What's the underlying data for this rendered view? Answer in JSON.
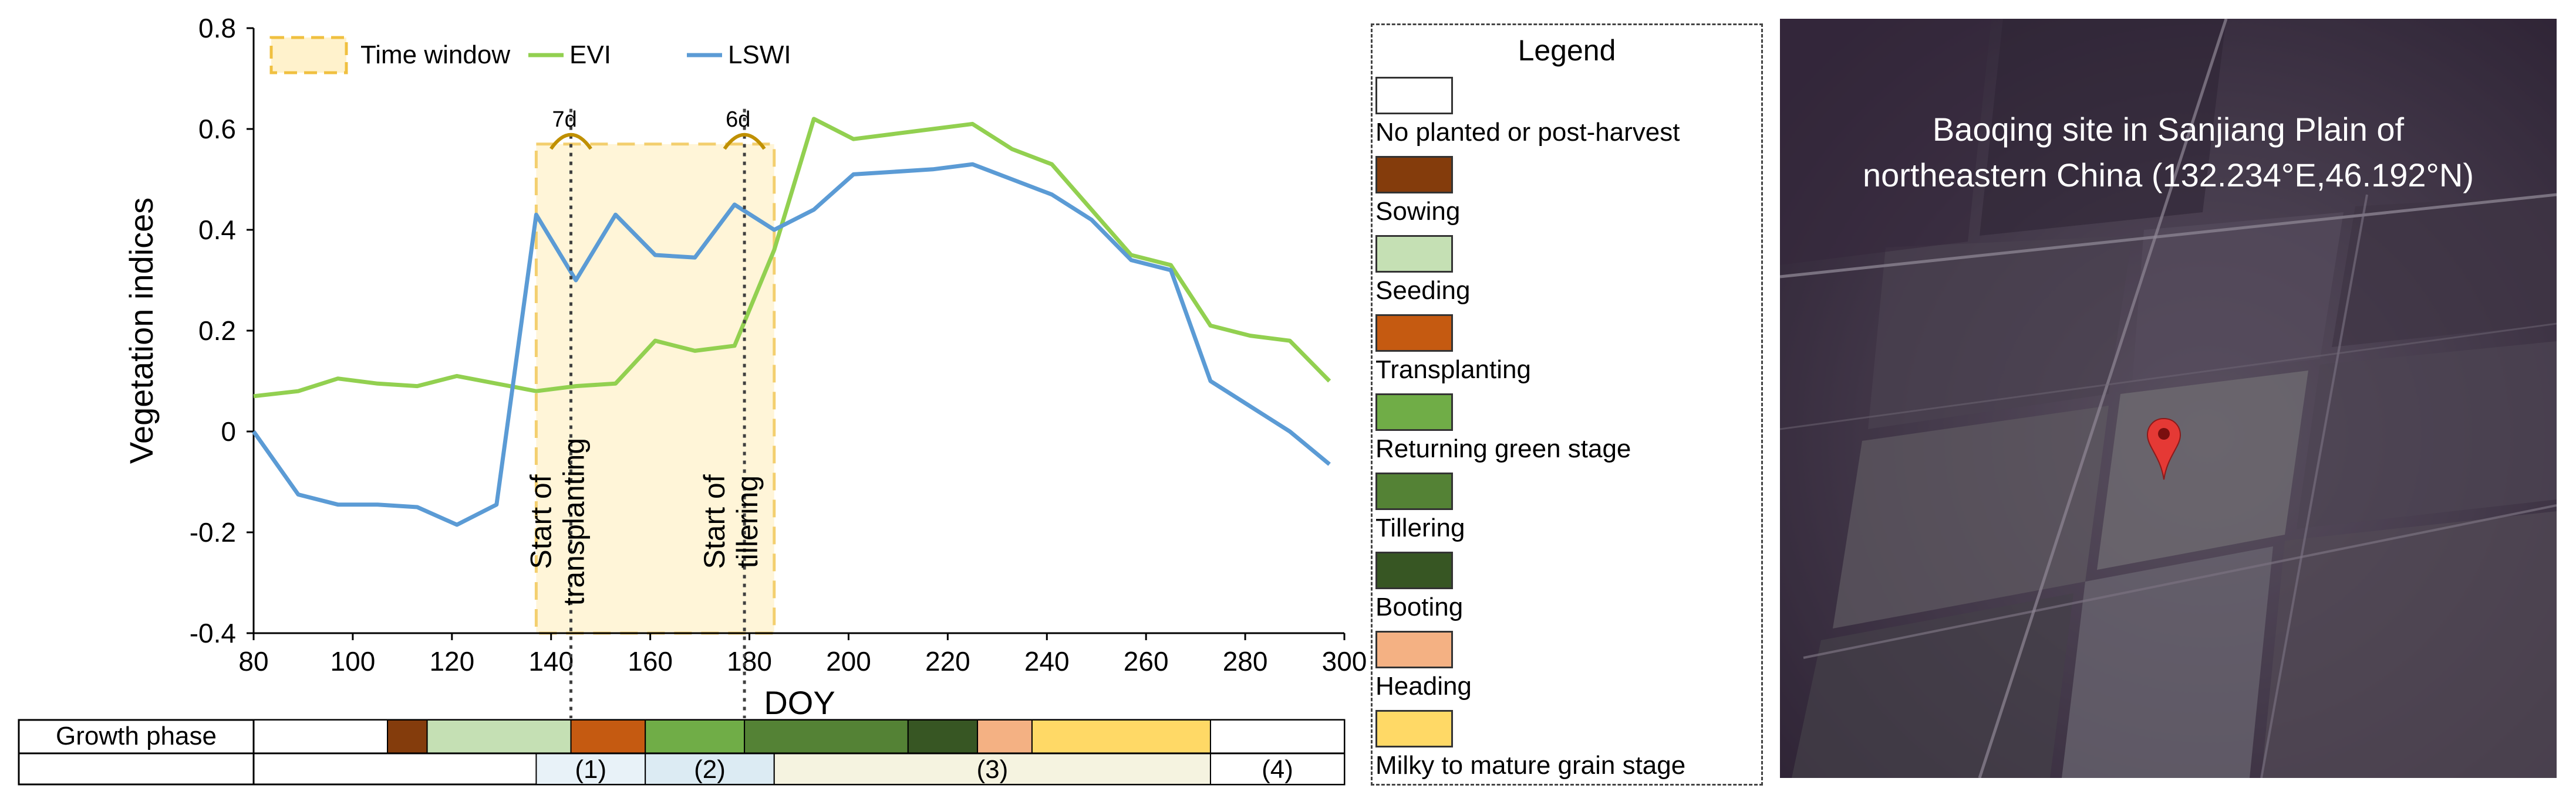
{
  "chart_data": {
    "type": "line",
    "xlabel": "DOY",
    "ylabel": "Vegetation indices",
    "xlim": [
      80,
      300
    ],
    "ylim": [
      -0.4,
      0.8
    ],
    "xticks": [
      80,
      100,
      120,
      140,
      160,
      180,
      200,
      220,
      240,
      260,
      280,
      300
    ],
    "yticks": [
      -0.4,
      -0.2,
      0,
      0.2,
      0.4,
      0.6,
      0.8
    ],
    "xtick_labels": [
      "80",
      "100",
      "120",
      "140",
      "160",
      "180",
      "200",
      "220",
      "240",
      "260",
      "280",
      "300"
    ],
    "ytick_labels": [
      "-0.4",
      "-0.2",
      "0",
      "0.2",
      "0.4",
      "0.6",
      "0.8"
    ],
    "legend": {
      "position": "top-left",
      "time_window_label": "Time window"
    },
    "series": [
      {
        "name": "EVI",
        "color": "#92d050",
        "x": [
          80,
          89,
          97,
          105,
          113,
          121,
          129,
          137,
          145,
          153,
          161,
          169,
          177,
          185,
          193,
          201,
          209,
          217,
          225,
          233,
          241,
          249,
          257,
          265,
          273,
          281,
          289,
          297
        ],
        "y": [
          0.07,
          0.08,
          0.105,
          0.095,
          0.09,
          0.11,
          0.095,
          0.08,
          0.09,
          0.095,
          0.18,
          0.16,
          0.17,
          0.36,
          0.62,
          0.58,
          0.59,
          0.6,
          0.61,
          0.56,
          0.53,
          0.44,
          0.35,
          0.33,
          0.21,
          0.19,
          0.18,
          0.1
        ]
      },
      {
        "name": "LSWI",
        "color": "#5b9bd5",
        "x": [
          80,
          89,
          97,
          105,
          113,
          121,
          129,
          137,
          145,
          153,
          161,
          169,
          177,
          185,
          193,
          201,
          209,
          217,
          225,
          233,
          241,
          249,
          257,
          265,
          273,
          281,
          289,
          297
        ],
        "y": [
          0.0,
          -0.125,
          -0.145,
          -0.145,
          -0.15,
          -0.185,
          -0.145,
          0.43,
          0.3,
          0.43,
          0.35,
          0.345,
          0.45,
          0.4,
          0.44,
          0.51,
          0.515,
          0.52,
          0.53,
          0.5,
          0.47,
          0.42,
          0.34,
          0.32,
          0.1,
          0.05,
          0.0,
          -0.065
        ]
      }
    ],
    "time_window": {
      "start": 137,
      "end": 185,
      "top": 0.57
    },
    "markers": [
      {
        "doy": 144,
        "label": "Start of transplanting",
        "line1": "Start of",
        "line2": "transplanting",
        "gap_label": "7d"
      },
      {
        "doy": 179,
        "label": "Start of tillering",
        "line1": "Start of",
        "line2": "tillering",
        "gap_label": "6d"
      }
    ],
    "growth_phase": {
      "row_label": "Growth phase",
      "segments": [
        {
          "start": 80,
          "end": 107,
          "stage": "No planted or post-harvest",
          "color": "#ffffff"
        },
        {
          "start": 107,
          "end": 115,
          "stage": "Sowing",
          "color": "#843c0c"
        },
        {
          "start": 115,
          "end": 144,
          "stage": "Seeding",
          "color": "#c5e0b4"
        },
        {
          "start": 144,
          "end": 159,
          "stage": "Transplanting",
          "color": "#c55a11"
        },
        {
          "start": 159,
          "end": 179,
          "stage": "Returning green stage",
          "color": "#70ad47"
        },
        {
          "start": 179,
          "end": 212,
          "stage": "Tillering",
          "color": "#548235"
        },
        {
          "start": 212,
          "end": 226,
          "stage": "Booting",
          "color": "#375623"
        },
        {
          "start": 226,
          "end": 237,
          "stage": "Heading",
          "color": "#f4b183"
        },
        {
          "start": 237,
          "end": 273,
          "stage": "Milky to mature grain stage",
          "color": "#ffd966"
        },
        {
          "start": 273,
          "end": 300,
          "stage": "No planted or post-harvest",
          "color": "#ffffff"
        }
      ]
    },
    "periods": [
      {
        "label": "(1)",
        "start": 137,
        "end": 159
      },
      {
        "label": "(2)",
        "start": 159,
        "end": 185
      },
      {
        "label": "(3)",
        "start": 185,
        "end": 273
      },
      {
        "label": "(4)",
        "start": 273,
        "end": 300
      }
    ]
  },
  "legend_panel": {
    "title": "Legend",
    "items": [
      {
        "label": "No planted or post-harvest",
        "color": "#ffffff"
      },
      {
        "label": "Sowing",
        "color": "#843c0c"
      },
      {
        "label": "Seeding",
        "color": "#c5e0b4"
      },
      {
        "label": "Transplanting",
        "color": "#c55a11"
      },
      {
        "label": "Returning green stage",
        "color": "#70ad47"
      },
      {
        "label": "Tillering",
        "color": "#548235"
      },
      {
        "label": "Booting",
        "color": "#375623"
      },
      {
        "label": "Heading",
        "color": "#f4b183"
      },
      {
        "label": "Milky to mature grain stage",
        "color": "#ffd966"
      }
    ]
  },
  "map": {
    "caption_line1": "Baoqing site in Sanjiang Plain of",
    "caption_line2": "northeastern China  (132.234°E,46.192°N)",
    "marker_icon": "map-pin-icon"
  }
}
